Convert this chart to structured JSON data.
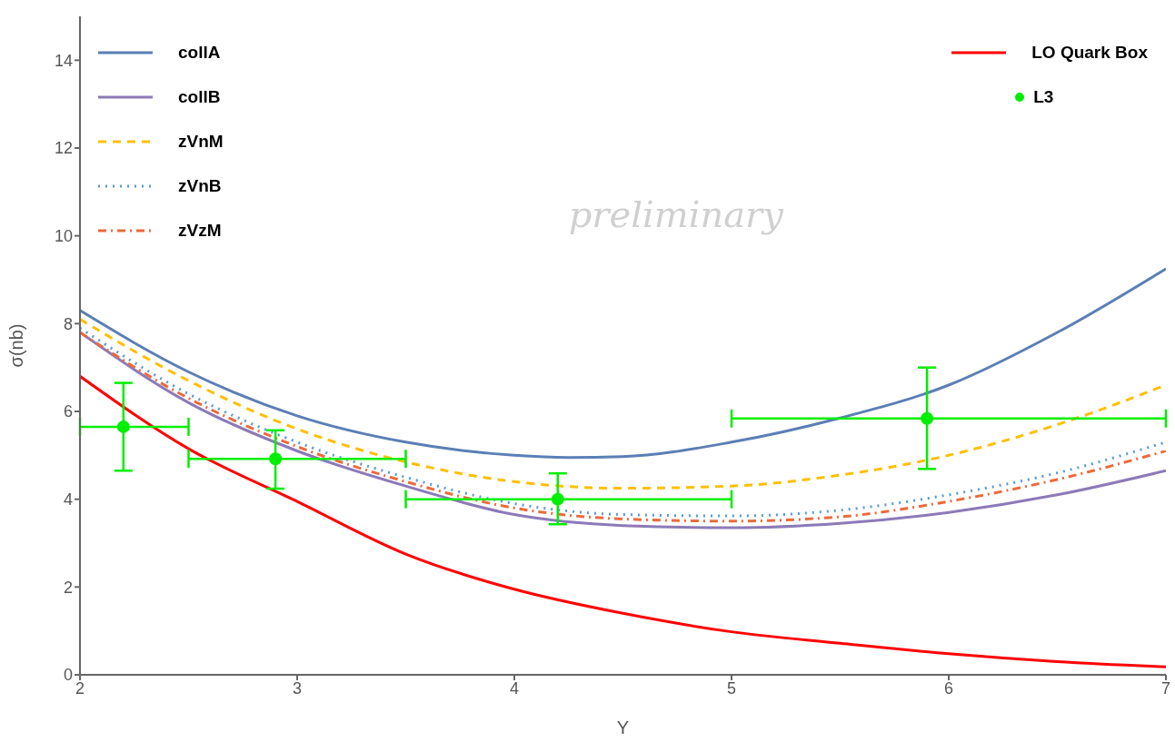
{
  "chart_data": {
    "type": "line",
    "xlabel": "Y",
    "ylabel": "σ(nb)",
    "xlim": [
      2,
      7
    ],
    "xticks": [
      2,
      3,
      4,
      5,
      6,
      7
    ],
    "ylim": [
      0,
      15
    ],
    "yticks": [
      0,
      2,
      4,
      6,
      8,
      10,
      12,
      14
    ],
    "grid": false,
    "legend": "top",
    "marker": "none",
    "annotations": [
      "preliminary"
    ],
    "series": [
      {
        "name": "collA",
        "color": "#5b7fb5",
        "line_style": "solid",
        "x": [
          2,
          2.5,
          3,
          3.5,
          4,
          4.25,
          4.5,
          5,
          5.5,
          6,
          6.5,
          7
        ],
        "values": [
          8.3,
          6.9,
          5.9,
          5.3,
          5.0,
          4.95,
          4.97,
          5.3,
          5.85,
          6.6,
          7.8,
          9.25
        ]
      },
      {
        "name": "collB",
        "color": "#8c7ab8",
        "line_style": "solid",
        "x": [
          2,
          2.5,
          3,
          3.5,
          4,
          4.5,
          5,
          5.5,
          6,
          6.5,
          7
        ],
        "values": [
          7.8,
          6.2,
          5.1,
          4.3,
          3.65,
          3.4,
          3.35,
          3.45,
          3.7,
          4.1,
          4.65
        ]
      },
      {
        "name": "zVnM",
        "color": "#ffbf00",
        "line_style": "dashed",
        "x": [
          2,
          2.5,
          3,
          3.5,
          4,
          4.5,
          5,
          5.5,
          6,
          6.5,
          7
        ],
        "values": [
          8.1,
          6.7,
          5.6,
          4.85,
          4.4,
          4.25,
          4.3,
          4.55,
          5.0,
          5.7,
          6.6
        ]
      },
      {
        "name": "zVnB",
        "color": "#5a9bd5",
        "line_style": "dotted",
        "x": [
          2,
          2.5,
          3,
          3.5,
          4,
          4.5,
          5,
          5.5,
          6,
          6.5,
          7
        ],
        "values": [
          7.9,
          6.4,
          5.3,
          4.5,
          3.9,
          3.65,
          3.62,
          3.75,
          4.1,
          4.6,
          5.3
        ]
      },
      {
        "name": "zVzM",
        "color": "#ec6a3c",
        "line_style": "dashdot",
        "x": [
          2,
          2.5,
          3,
          3.5,
          4,
          4.5,
          5,
          5.5,
          6,
          6.5,
          7
        ],
        "values": [
          7.8,
          6.3,
          5.2,
          4.4,
          3.8,
          3.55,
          3.5,
          3.6,
          3.95,
          4.45,
          5.1
        ]
      },
      {
        "name": "LO Quark Box",
        "color": "#ff0000",
        "line_style": "solid",
        "x": [
          2,
          2.5,
          3,
          3.5,
          4,
          4.5,
          5,
          5.5,
          6,
          6.5,
          7
        ],
        "values": [
          6.8,
          5.15,
          3.95,
          2.75,
          1.95,
          1.4,
          0.98,
          0.72,
          0.48,
          0.3,
          0.18
        ]
      },
      {
        "name": "L3",
        "type": "scatter",
        "marker": "circle",
        "color": "#00ee00",
        "x": [
          2.2,
          2.9,
          4.2,
          5.9
        ],
        "values": [
          5.65,
          4.92,
          4.0,
          5.84
        ],
        "errors": [
          [
            4.65,
            6.65
          ],
          [
            4.24,
            5.57
          ],
          [
            3.43,
            4.59
          ],
          [
            4.69,
            7.0
          ]
        ],
        "xerrors": [
          [
            2.0,
            2.5
          ],
          [
            2.5,
            3.5
          ],
          [
            3.5,
            5.0
          ],
          [
            5.0,
            7.0
          ]
        ]
      }
    ]
  }
}
